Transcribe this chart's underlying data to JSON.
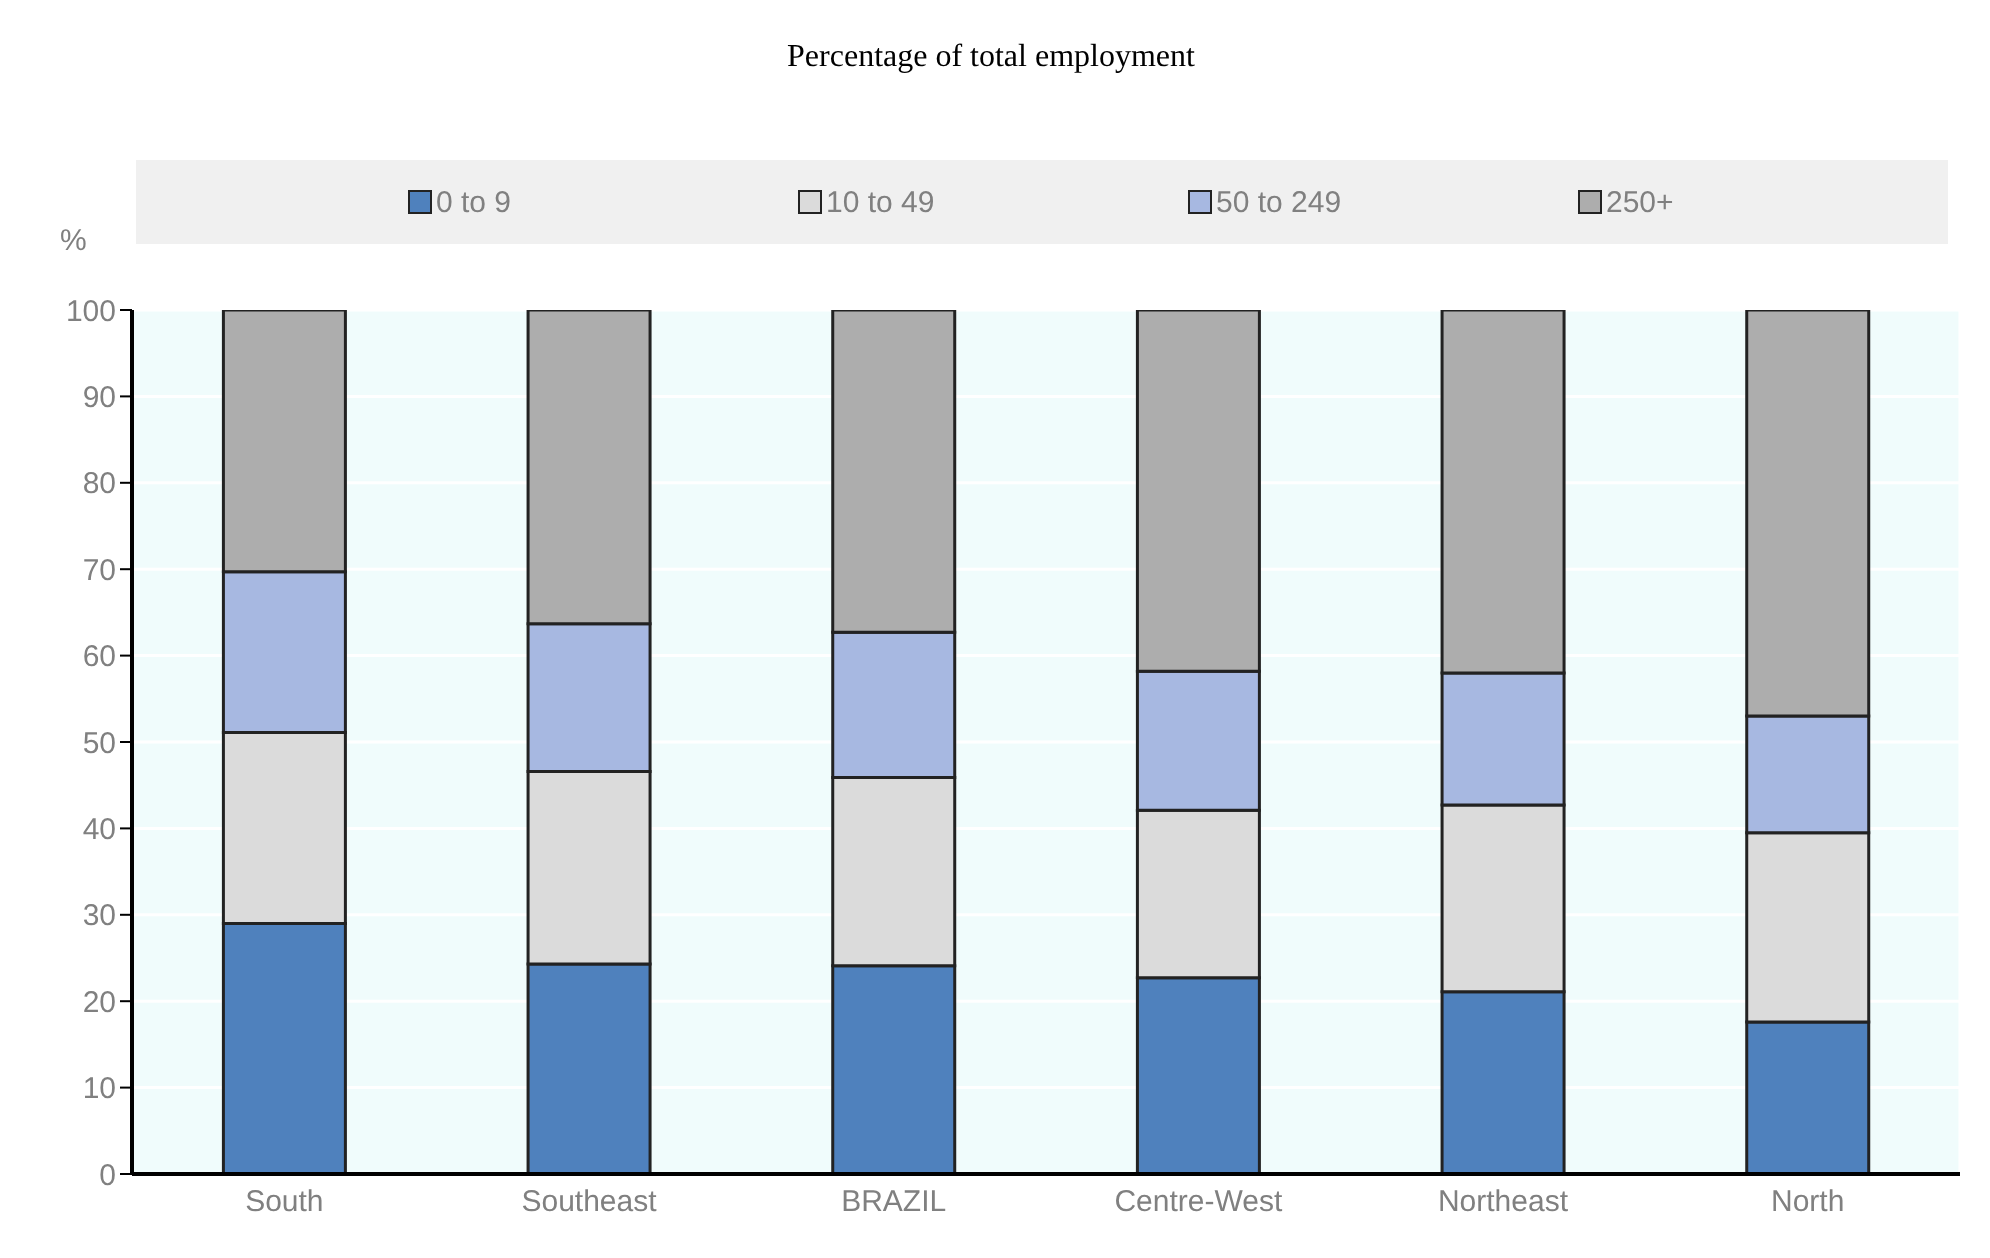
{
  "chart_data": {
    "type": "bar",
    "title": "Percentage of total employment",
    "ylabel": "%",
    "stacked": true,
    "categories": [
      "South",
      "Southeast",
      "BRAZIL",
      "Centre-West",
      "Northeast",
      "North"
    ],
    "series": [
      {
        "name": "0 to 9",
        "color": "#4f81bd",
        "values": [
          29.0,
          24.3,
          24.1,
          22.7,
          21.1,
          17.6
        ]
      },
      {
        "name": "10 to 49",
        "color": "#dbdbdb",
        "values": [
          22.1,
          22.3,
          21.8,
          19.4,
          21.6,
          21.9
        ]
      },
      {
        "name": "50 to 249",
        "color": "#a7b8e1",
        "values": [
          18.6,
          17.1,
          16.8,
          16.1,
          15.3,
          13.5
        ]
      },
      {
        "name": "250+",
        "color": "#adadad",
        "values": [
          30.3,
          36.3,
          37.3,
          41.8,
          42.0,
          47.0
        ]
      }
    ],
    "ylim": [
      0,
      100
    ],
    "yticks": [
      0,
      10,
      20,
      30,
      40,
      50,
      60,
      70,
      80,
      90,
      100
    ],
    "grid": true,
    "legend": "top"
  }
}
